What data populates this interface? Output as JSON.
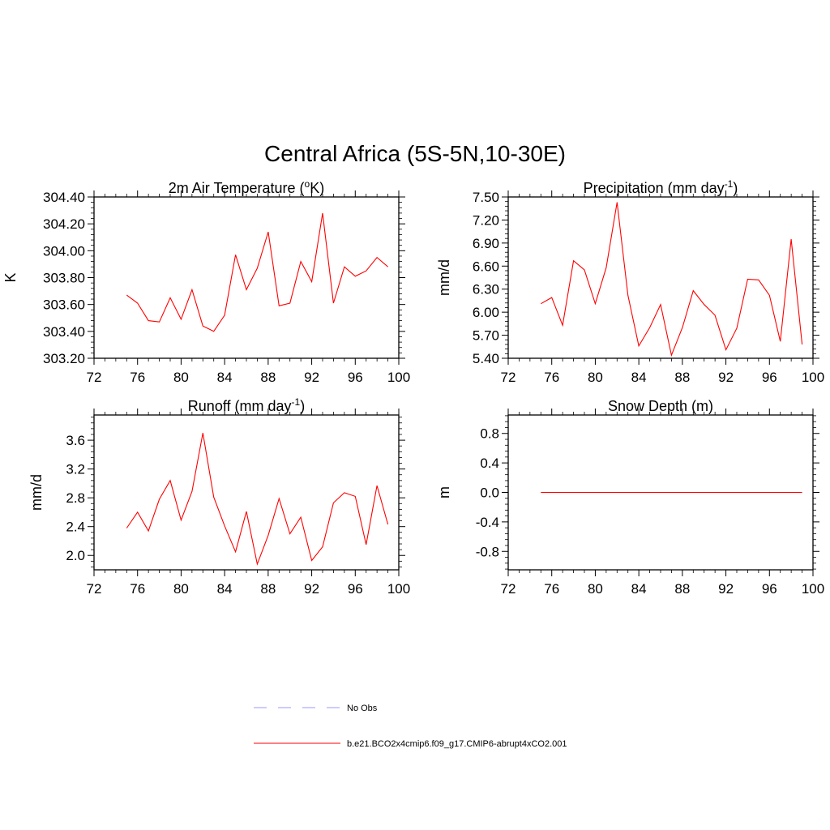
{
  "title": "Central Africa (5S-5N,10-30E)",
  "colors": {
    "model_line": "#ff0000",
    "obs_line": "#9999ff",
    "axis": "#000000"
  },
  "legend": {
    "obs_label": "No Obs",
    "model_label": "b.e21.BCO2x4cmip6.f09_g17.CMIP6-abrupt4xCO2.001"
  },
  "chart_data": [
    {
      "type": "line",
      "title_main": "2m Air Temperature (",
      "title_super": "o",
      "title_tail": "K)",
      "ylabel": "K",
      "xlim": [
        72,
        100
      ],
      "ylim": [
        303.2,
        304.4
      ],
      "xticks": [
        72,
        76,
        80,
        84,
        88,
        92,
        96,
        100
      ],
      "yticks": [
        303.2,
        303.4,
        303.6,
        303.8,
        304.0,
        304.2,
        304.4
      ],
      "ytick_labels": [
        "303.20",
        "303.40",
        "303.60",
        "303.80",
        "304.00",
        "304.20",
        "304.40"
      ],
      "x": [
        75,
        76,
        77,
        78,
        79,
        80,
        81,
        82,
        83,
        84,
        85,
        86,
        87,
        88,
        89,
        90,
        91,
        92,
        93,
        94,
        95,
        96,
        97,
        98,
        99
      ],
      "series": [
        {
          "name": "b.e21.BCO2x4cmip6.f09_g17.CMIP6-abrupt4xCO2.001",
          "values": [
            303.67,
            303.61,
            303.48,
            303.47,
            303.65,
            303.49,
            303.71,
            303.44,
            303.4,
            303.52,
            303.97,
            303.71,
            303.87,
            304.14,
            303.59,
            303.61,
            303.92,
            303.77,
            304.28,
            303.61,
            303.88,
            303.81,
            303.85,
            303.95,
            303.88
          ]
        }
      ]
    },
    {
      "type": "line",
      "title_main": "Precipitation (mm day",
      "title_super": "-1",
      "title_tail": ")",
      "ylabel": "mm/d",
      "xlim": [
        72,
        100
      ],
      "ylim": [
        5.4,
        7.5
      ],
      "xticks": [
        72,
        76,
        80,
        84,
        88,
        92,
        96,
        100
      ],
      "yticks": [
        5.4,
        5.7,
        6.0,
        6.3,
        6.6,
        6.9,
        7.2,
        7.5
      ],
      "ytick_labels": [
        "5.40",
        "5.70",
        "6.00",
        "6.30",
        "6.60",
        "6.90",
        "7.20",
        "7.50"
      ],
      "x": [
        75,
        76,
        77,
        78,
        79,
        80,
        81,
        82,
        83,
        84,
        85,
        86,
        87,
        88,
        89,
        90,
        91,
        92,
        93,
        94,
        95,
        96,
        97,
        98,
        99
      ],
      "series": [
        {
          "name": "b.e21.BCO2x4cmip6.f09_g17.CMIP6-abrupt4xCO2.001",
          "values": [
            6.11,
            6.19,
            5.83,
            6.67,
            6.55,
            6.11,
            6.58,
            7.43,
            6.22,
            5.56,
            5.8,
            6.1,
            5.44,
            5.8,
            6.28,
            6.1,
            5.96,
            5.51,
            5.79,
            6.43,
            6.42,
            6.22,
            5.62,
            6.95,
            5.58
          ]
        }
      ]
    },
    {
      "type": "line",
      "title_main": "Runoff (mm day",
      "title_super": "-1",
      "title_tail": ")",
      "ylabel": "mm/d",
      "xlim": [
        72,
        100
      ],
      "ylim": [
        1.8,
        3.95
      ],
      "xticks": [
        72,
        76,
        80,
        84,
        88,
        92,
        96,
        100
      ],
      "yticks": [
        2.0,
        2.4,
        2.8,
        3.2,
        3.6
      ],
      "ytick_labels": [
        "2.0",
        "2.4",
        "2.8",
        "3.2",
        "3.6"
      ],
      "x": [
        75,
        76,
        77,
        78,
        79,
        80,
        81,
        82,
        83,
        84,
        85,
        86,
        87,
        88,
        89,
        90,
        91,
        92,
        93,
        94,
        95,
        96,
        97,
        98,
        99
      ],
      "series": [
        {
          "name": "b.e21.BCO2x4cmip6.f09_g17.CMIP6-abrupt4xCO2.001",
          "values": [
            2.38,
            2.6,
            2.34,
            2.78,
            3.04,
            2.49,
            2.89,
            3.7,
            2.81,
            2.41,
            2.05,
            2.61,
            1.88,
            2.28,
            2.79,
            2.3,
            2.53,
            1.93,
            2.12,
            2.73,
            2.87,
            2.82,
            2.15,
            2.97,
            2.43
          ]
        }
      ]
    },
    {
      "type": "line",
      "title_main": "Snow Depth (m)",
      "title_super": "",
      "title_tail": "",
      "ylabel": "m",
      "xlim": [
        72,
        100
      ],
      "ylim": [
        -1.05,
        1.05
      ],
      "xticks": [
        72,
        76,
        80,
        84,
        88,
        92,
        96,
        100
      ],
      "yticks": [
        -0.8,
        -0.4,
        0.0,
        0.4,
        0.8
      ],
      "ytick_labels": [
        "-0.8",
        "-0.4",
        "0.0",
        "0.4",
        "0.8"
      ],
      "x": [
        75,
        76,
        77,
        78,
        79,
        80,
        81,
        82,
        83,
        84,
        85,
        86,
        87,
        88,
        89,
        90,
        91,
        92,
        93,
        94,
        95,
        96,
        97,
        98,
        99
      ],
      "series": [
        {
          "name": "b.e21.BCO2x4cmip6.f09_g17.CMIP6-abrupt4xCO2.001",
          "values": [
            0,
            0,
            0,
            0,
            0,
            0,
            0,
            0,
            0,
            0,
            0,
            0,
            0,
            0,
            0,
            0,
            0,
            0,
            0,
            0,
            0,
            0,
            0,
            0,
            0
          ]
        }
      ]
    }
  ]
}
